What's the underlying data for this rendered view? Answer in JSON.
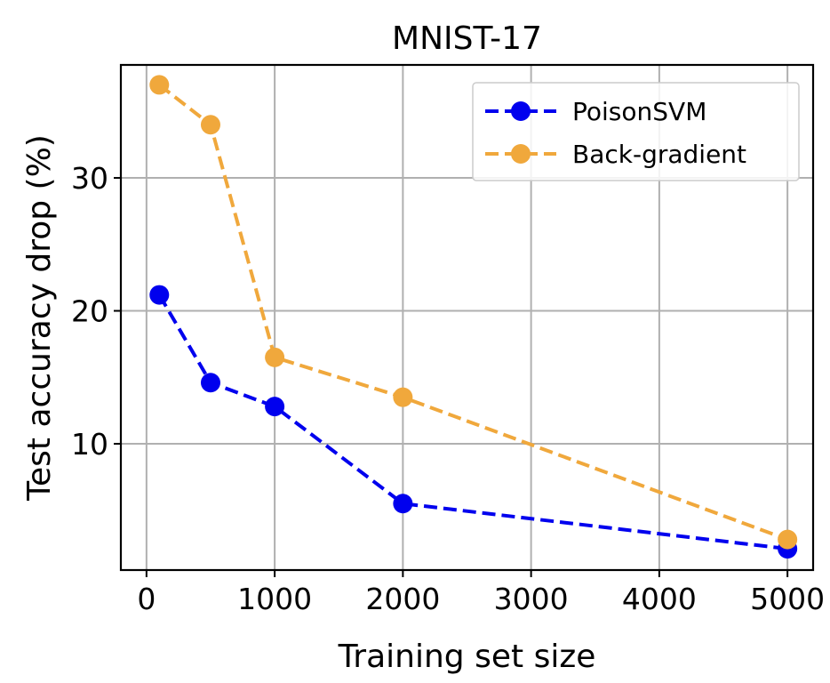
{
  "chart_data": {
    "type": "line",
    "title": "MNIST-17",
    "xlabel": "Training set size",
    "ylabel": "Test accuracy drop (%)",
    "xlim": [
      -200,
      5200
    ],
    "ylim": [
      0.5,
      38.5
    ],
    "xticks": [
      0,
      1000,
      2000,
      3000,
      4000,
      5000
    ],
    "xtick_labels": [
      "0",
      "1000",
      "2000",
      "3000",
      "4000",
      "5000"
    ],
    "yticks": [
      10,
      20,
      30
    ],
    "ytick_labels": [
      "10",
      "20",
      "30"
    ],
    "grid": true,
    "legend_position": "top-right",
    "series": [
      {
        "name": "PoisonSVM",
        "color": "#0000ee",
        "x": [
          100,
          500,
          1000,
          2000,
          5000
        ],
        "y": [
          21.2,
          14.6,
          12.8,
          5.5,
          2.1
        ]
      },
      {
        "name": "Back-gradient",
        "color": "#f0a83c",
        "x": [
          100,
          500,
          1000,
          2000,
          5000
        ],
        "y": [
          37.0,
          34.0,
          16.5,
          13.5,
          2.8
        ]
      }
    ]
  }
}
